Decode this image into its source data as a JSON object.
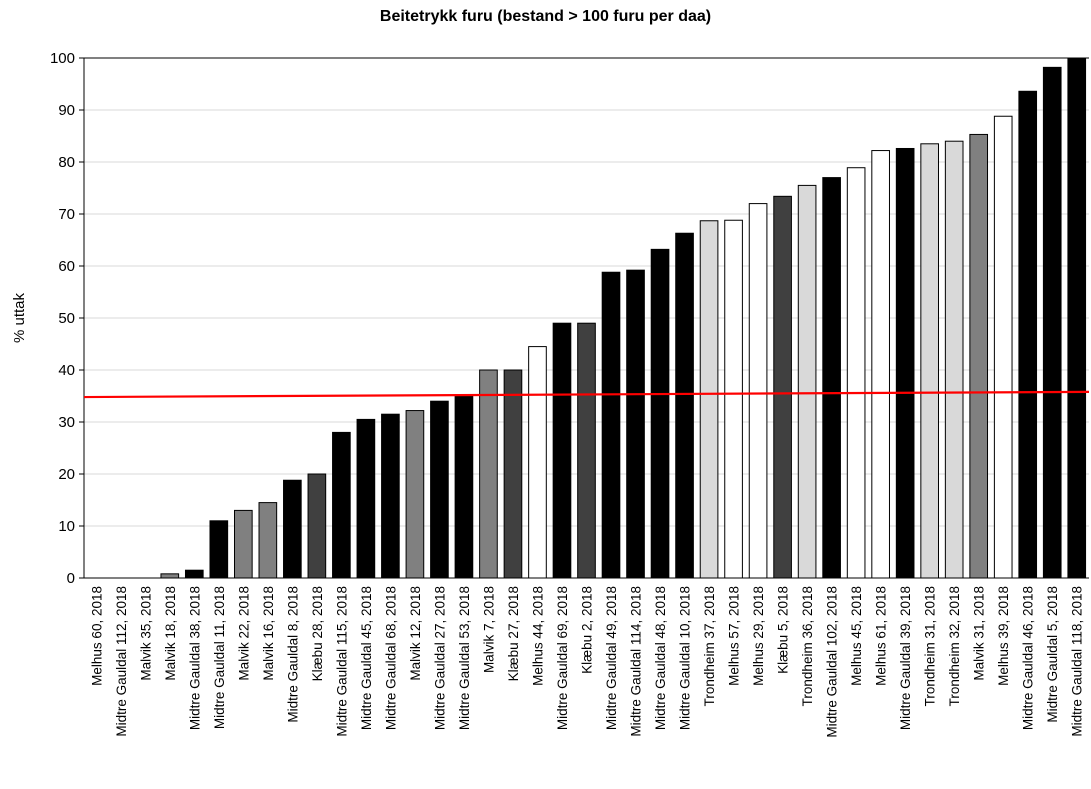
{
  "chart_data": {
    "type": "bar",
    "title": "Beitetrykk furu (bestand > 100 furu per daa)",
    "xlabel": "",
    "ylabel": "% uttak",
    "ylim": [
      0,
      100
    ],
    "yticks": [
      0,
      10,
      20,
      30,
      40,
      50,
      60,
      70,
      80,
      90,
      100
    ],
    "grid": true,
    "legend": "none",
    "categories": [
      "Melhus 60, 2018",
      "Midtre Gauldal 112, 2018",
      "Malvik 35, 2018",
      "Malvik 18, 2018",
      "Midtre Gauldal 38, 2018",
      "Midtre Gauldal 11, 2018",
      "Malvik 22, 2018",
      "Malvik 16, 2018",
      "Midtre Gauldal 8, 2018",
      "Klæbu 28, 2018",
      "Midtre Gauldal 115, 2018",
      "Midtre Gauldal 45, 2018",
      "Midtre Gauldal 68, 2018",
      "Malvik 12, 2018",
      "Midtre Gauldal 27, 2018",
      "Midtre Gauldal 53, 2018",
      "Malvik 7, 2018",
      "Klæbu 27, 2018",
      "Melhus 44, 2018",
      "Midtre Gauldal 69, 2018",
      "Klæbu 2, 2018",
      "Midtre Gauldal 49, 2018",
      "Midtre Gauldal 114, 2018",
      "Midtre Gauldal 48, 2018",
      "Midtre Gauldal 10, 2018",
      "Trondheim 37, 2018",
      "Melhus 57, 2018",
      "Melhus 29, 2018",
      "Klæbu 5, 2018",
      "Trondheim 36, 2018",
      "Midtre Gauldal 102, 2018",
      "Melhus 45, 2018",
      "Melhus 61, 2018",
      "Midtre Gauldal 39, 2018",
      "Trondheim 31, 2018",
      "Trondheim 32, 2018",
      "Malvik 31, 2018",
      "Melhus 39, 2018",
      "Midtre Gauldal 46, 2018",
      "Midtre Gauldal 5, 2018",
      "Midtre Gauldal 118, 2018"
    ],
    "values": [
      0,
      0,
      0,
      0.8,
      1.5,
      11,
      13,
      14.5,
      18.8,
      20,
      28,
      30.5,
      31.5,
      32.2,
      34,
      35,
      40,
      40,
      44.5,
      49,
      49,
      58.8,
      59.2,
      63.2,
      66.3,
      68.7,
      68.8,
      72,
      73.4,
      75.5,
      77,
      78.9,
      82.2,
      82.6,
      83.5,
      84,
      85.3,
      88.8,
      93.6,
      98.2,
      100
    ],
    "bar_colors": [
      "#000000",
      "#000000",
      "#000000",
      "#808080",
      "#000000",
      "#000000",
      "#808080",
      "#808080",
      "#000000",
      "#404040",
      "#000000",
      "#000000",
      "#000000",
      "#808080",
      "#000000",
      "#000000",
      "#808080",
      "#404040",
      "#ffffff",
      "#000000",
      "#404040",
      "#000000",
      "#000000",
      "#000000",
      "#000000",
      "#d9d9d9",
      "#ffffff",
      "#ffffff",
      "#404040",
      "#d9d9d9",
      "#000000",
      "#ffffff",
      "#ffffff",
      "#000000",
      "#d9d9d9",
      "#d9d9d9",
      "#808080",
      "#ffffff",
      "#000000",
      "#000000",
      "#000000"
    ],
    "reference_line": {
      "color": "#ff0000",
      "y_start": 34.8,
      "y_end": 35.8
    }
  }
}
